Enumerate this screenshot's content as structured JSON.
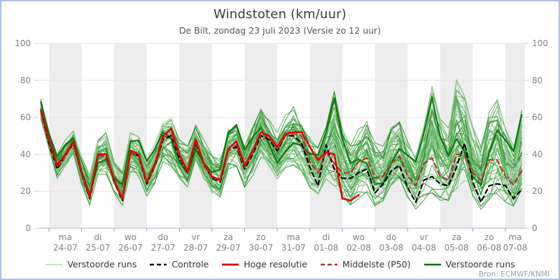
{
  "header": {
    "title": "Windstoten (km/uur)",
    "subtitle": "De Bilt, zondag 23 juli 2023 (Versie zo 12 uur)"
  },
  "source": {
    "label": "Bron: ECMWF/KNMI"
  },
  "legend": {
    "items": [
      {
        "label": "Verstoorde runs",
        "color": "#b2d8b2",
        "dash": false,
        "width": 1.6
      },
      {
        "label": "Controle",
        "color": "#000000",
        "dash": true,
        "width": 2.6
      },
      {
        "label": "Hoge resolutie",
        "color": "#e10000",
        "dash": false,
        "width": 2.8
      },
      {
        "label": "Middelste (P50)",
        "color": "#a83838",
        "dash": true,
        "width": 2.6
      },
      {
        "label": "Verstoorde runs",
        "color": "#0b720b",
        "dash": false,
        "width": 2.6
      }
    ]
  },
  "chart_data": {
    "type": "line",
    "title": "Windstoten (km/uur)",
    "subtitle": "De Bilt, zondag 23 juli 2023 (Versie zo 12 uur)",
    "ylabel": "",
    "ylim": [
      0,
      100
    ],
    "yticks": [
      0,
      20,
      40,
      60,
      80,
      100
    ],
    "grid": true,
    "legend_position": "bottom",
    "points_per_day": 4,
    "first_point_hours_after_midnight": -6,
    "day_labels": [
      {
        "day": "ma",
        "date": "24-07"
      },
      {
        "day": "di",
        "date": "25-07"
      },
      {
        "day": "wo",
        "date": "26-07"
      },
      {
        "day": "do",
        "date": "27-07"
      },
      {
        "day": "vr",
        "date": "28-07"
      },
      {
        "day": "za",
        "date": "29-07"
      },
      {
        "day": "zo",
        "date": "30-07"
      },
      {
        "day": "ma",
        "date": "31-07"
      },
      {
        "day": "di",
        "date": "01-08"
      },
      {
        "day": "wo",
        "date": "02-08"
      },
      {
        "day": "do",
        "date": "03-08"
      },
      {
        "day": "vr",
        "date": "04-08"
      },
      {
        "day": "za",
        "date": "05-08"
      },
      {
        "day": "zo",
        "date": "06-08"
      },
      {
        "day": "ma",
        "date": "07-08"
      }
    ],
    "series": [
      {
        "name": "Controle",
        "color": "#000000",
        "dash": "6 5",
        "width": 2.2,
        "values": [
          63,
          46,
          32,
          39,
          46,
          29,
          16,
          39,
          39,
          25,
          15,
          41,
          39,
          24,
          34,
          48,
          50,
          38,
          30,
          46,
          34,
          27,
          25,
          42,
          44,
          32,
          40,
          50,
          48,
          42,
          50,
          50,
          46,
          33,
          23,
          45,
          32,
          27,
          27,
          30,
          32,
          19,
          24,
          31,
          34,
          22,
          14,
          26,
          28,
          24,
          23,
          33,
          46,
          25,
          14,
          23,
          24,
          23,
          16,
          21
        ]
      },
      {
        "name": "Middelste (P50)",
        "color": "#a83838",
        "dash": "7 5",
        "width": 2.2,
        "values": [
          63,
          47,
          33,
          39,
          46,
          29,
          17,
          39,
          39,
          25,
          16,
          41,
          39,
          25,
          34,
          49,
          51,
          39,
          30,
          47,
          34,
          27,
          26,
          42,
          45,
          33,
          41,
          51,
          49,
          43,
          50,
          51,
          50,
          36,
          30,
          41,
          35,
          30,
          30,
          36,
          38,
          27,
          28,
          35,
          39,
          28,
          23,
          35,
          38,
          28,
          26,
          40,
          39,
          30,
          26,
          37,
          37,
          28,
          23.5,
          31
        ]
      },
      {
        "name": "Hoge resolutie",
        "color": "#e10000",
        "dash": null,
        "width": 2.5,
        "values": [
          64,
          48,
          34,
          40,
          47,
          30,
          17,
          40,
          40,
          26,
          16,
          42,
          40,
          25,
          35,
          50,
          54,
          40,
          31,
          48,
          35,
          28,
          26,
          43,
          47,
          34,
          42,
          52,
          50,
          44,
          51,
          52,
          52,
          44,
          37,
          41,
          40,
          16,
          15,
          18
        ]
      }
    ],
    "ensemble": {
      "name": "Verstoorde runs",
      "count": 50,
      "colors": [
        "#9ccf9c",
        "#7cbf7c",
        "#4aa84a",
        "#2d962d",
        "#1b841b",
        "#62b462"
      ],
      "bold_member_color": "#0b720b",
      "envelope_min": [
        59,
        43,
        27,
        33,
        39,
        23,
        12,
        29,
        29,
        19,
        12,
        29,
        27,
        17,
        24,
        36,
        33,
        27,
        22,
        36,
        26,
        18,
        16,
        32,
        33,
        22,
        28,
        36,
        32,
        26,
        32,
        34,
        30,
        22,
        18,
        26,
        22,
        14,
        12,
        16,
        18,
        12,
        14,
        20,
        22,
        15,
        10,
        15,
        18,
        15,
        14,
        20,
        25,
        15,
        10,
        15,
        18,
        14,
        10,
        14
      ],
      "envelope_max": [
        70,
        52,
        40,
        48,
        54,
        39,
        29,
        48,
        52,
        36,
        31,
        52,
        50,
        38,
        46,
        58,
        60,
        48,
        45,
        57,
        48,
        40,
        38,
        55,
        58,
        45,
        55,
        65,
        60,
        52,
        62,
        67,
        60,
        50,
        45,
        55,
        75,
        55,
        45,
        55,
        60,
        48,
        45,
        55,
        58,
        48,
        40,
        55,
        78,
        60,
        55,
        82,
        72,
        55,
        45,
        65,
        70,
        55,
        45,
        66
      ]
    },
    "style": {
      "band_gray": "#ededed",
      "grid_color": "#e4e4e4",
      "axis_line_color": "#b9c6d6",
      "tick_color": "#9aa6b5",
      "label_color": "#808080"
    }
  }
}
